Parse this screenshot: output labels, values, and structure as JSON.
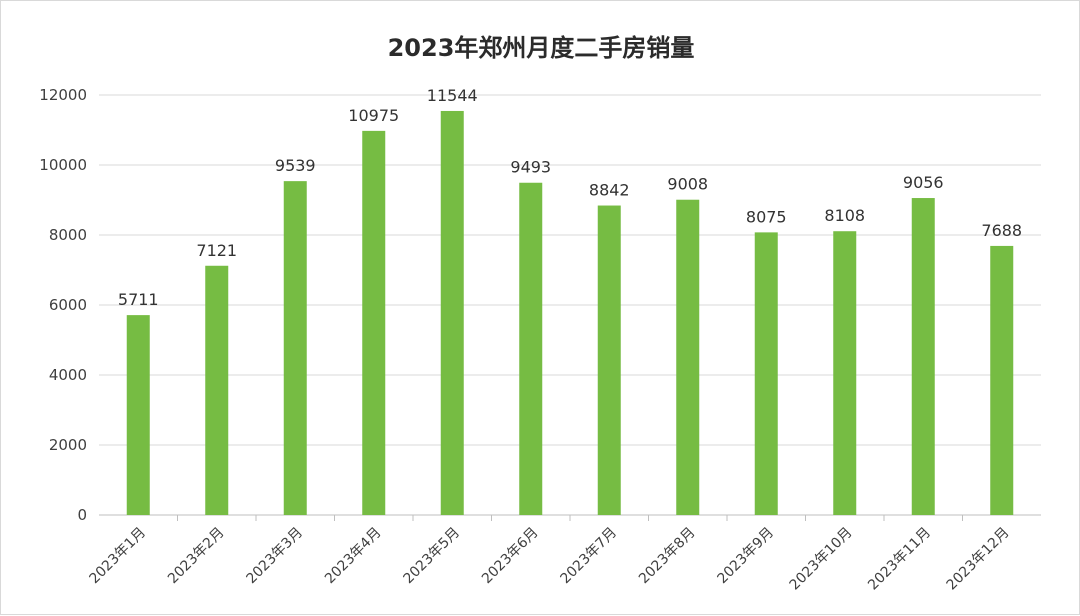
{
  "chart_data": {
    "type": "bar",
    "title": "2023年郑州月度二手房销量",
    "categories": [
      "2023年1月",
      "2023年2月",
      "2023年3月",
      "2023年4月",
      "2023年5月",
      "2023年6月",
      "2023年7月",
      "2023年8月",
      "2023年9月",
      "2023年10月",
      "2023年11月",
      "2023年12月"
    ],
    "values": [
      5711,
      7121,
      9539,
      10975,
      11544,
      9493,
      8842,
      9008,
      8075,
      8108,
      9056,
      7688
    ],
    "ylim": [
      0,
      12000
    ],
    "yticks": [
      0,
      2000,
      4000,
      6000,
      8000,
      10000,
      12000
    ],
    "grid": true,
    "legend": "none",
    "bar_color": "#76bc43"
  }
}
